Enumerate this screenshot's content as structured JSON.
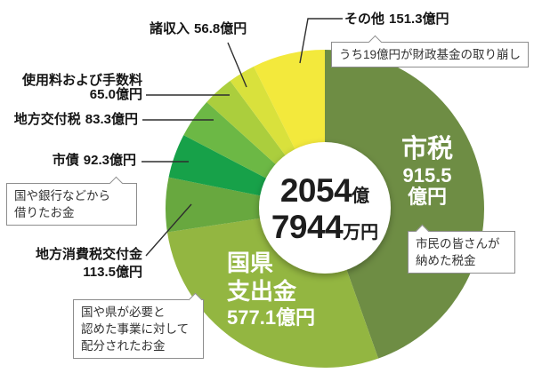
{
  "chart_data": {
    "type": "pie",
    "donut": true,
    "direction": "clockwise",
    "start_angle_deg": 0,
    "unit": "億円",
    "total": {
      "value_oku": "2054",
      "unit_oku": "億",
      "value_man": "7944",
      "unit_man": "万円",
      "full_text": "2054億7944万円"
    },
    "segments": [
      {
        "label": "市税",
        "value": 915.5,
        "value_str": "915.5",
        "unit_str": "億円",
        "display": "915.5億円",
        "color": "#6e8d44",
        "note": [
          "市民の皆さんが",
          "納めた税金"
        ]
      },
      {
        "label": "国県支出金",
        "label_lines": [
          "国県",
          "支出金"
        ],
        "value": 577.1,
        "display": "577.1億円",
        "color": "#93b641",
        "note": [
          "国や県が必要と",
          "認めた事業に対して",
          "配分されたお金"
        ]
      },
      {
        "label": "地方消費税交付金",
        "value": 113.5,
        "display": "113.5億円",
        "color": "#68a83f"
      },
      {
        "label": "市債",
        "value": 92.3,
        "display": "92.3億円",
        "color": "#17a149",
        "note": [
          "国や銀行などから",
          "借りたお金"
        ]
      },
      {
        "label": "地方交付税",
        "value": 83.3,
        "display": "83.3億円",
        "color": "#6cb845"
      },
      {
        "label": "使用料および手数料",
        "value": 65.0,
        "display": "65.0億円",
        "color": "#abce3d"
      },
      {
        "label": "諸収入",
        "value": 56.8,
        "display": "56.8億円",
        "color": "#d9e13c"
      },
      {
        "label": "その他",
        "value": 151.3,
        "display": "151.3億円",
        "color": "#f3e93c",
        "note": [
          "うち19億円が財政基金の取り崩し"
        ]
      }
    ],
    "geometry_note": "donut, hole shows total"
  }
}
